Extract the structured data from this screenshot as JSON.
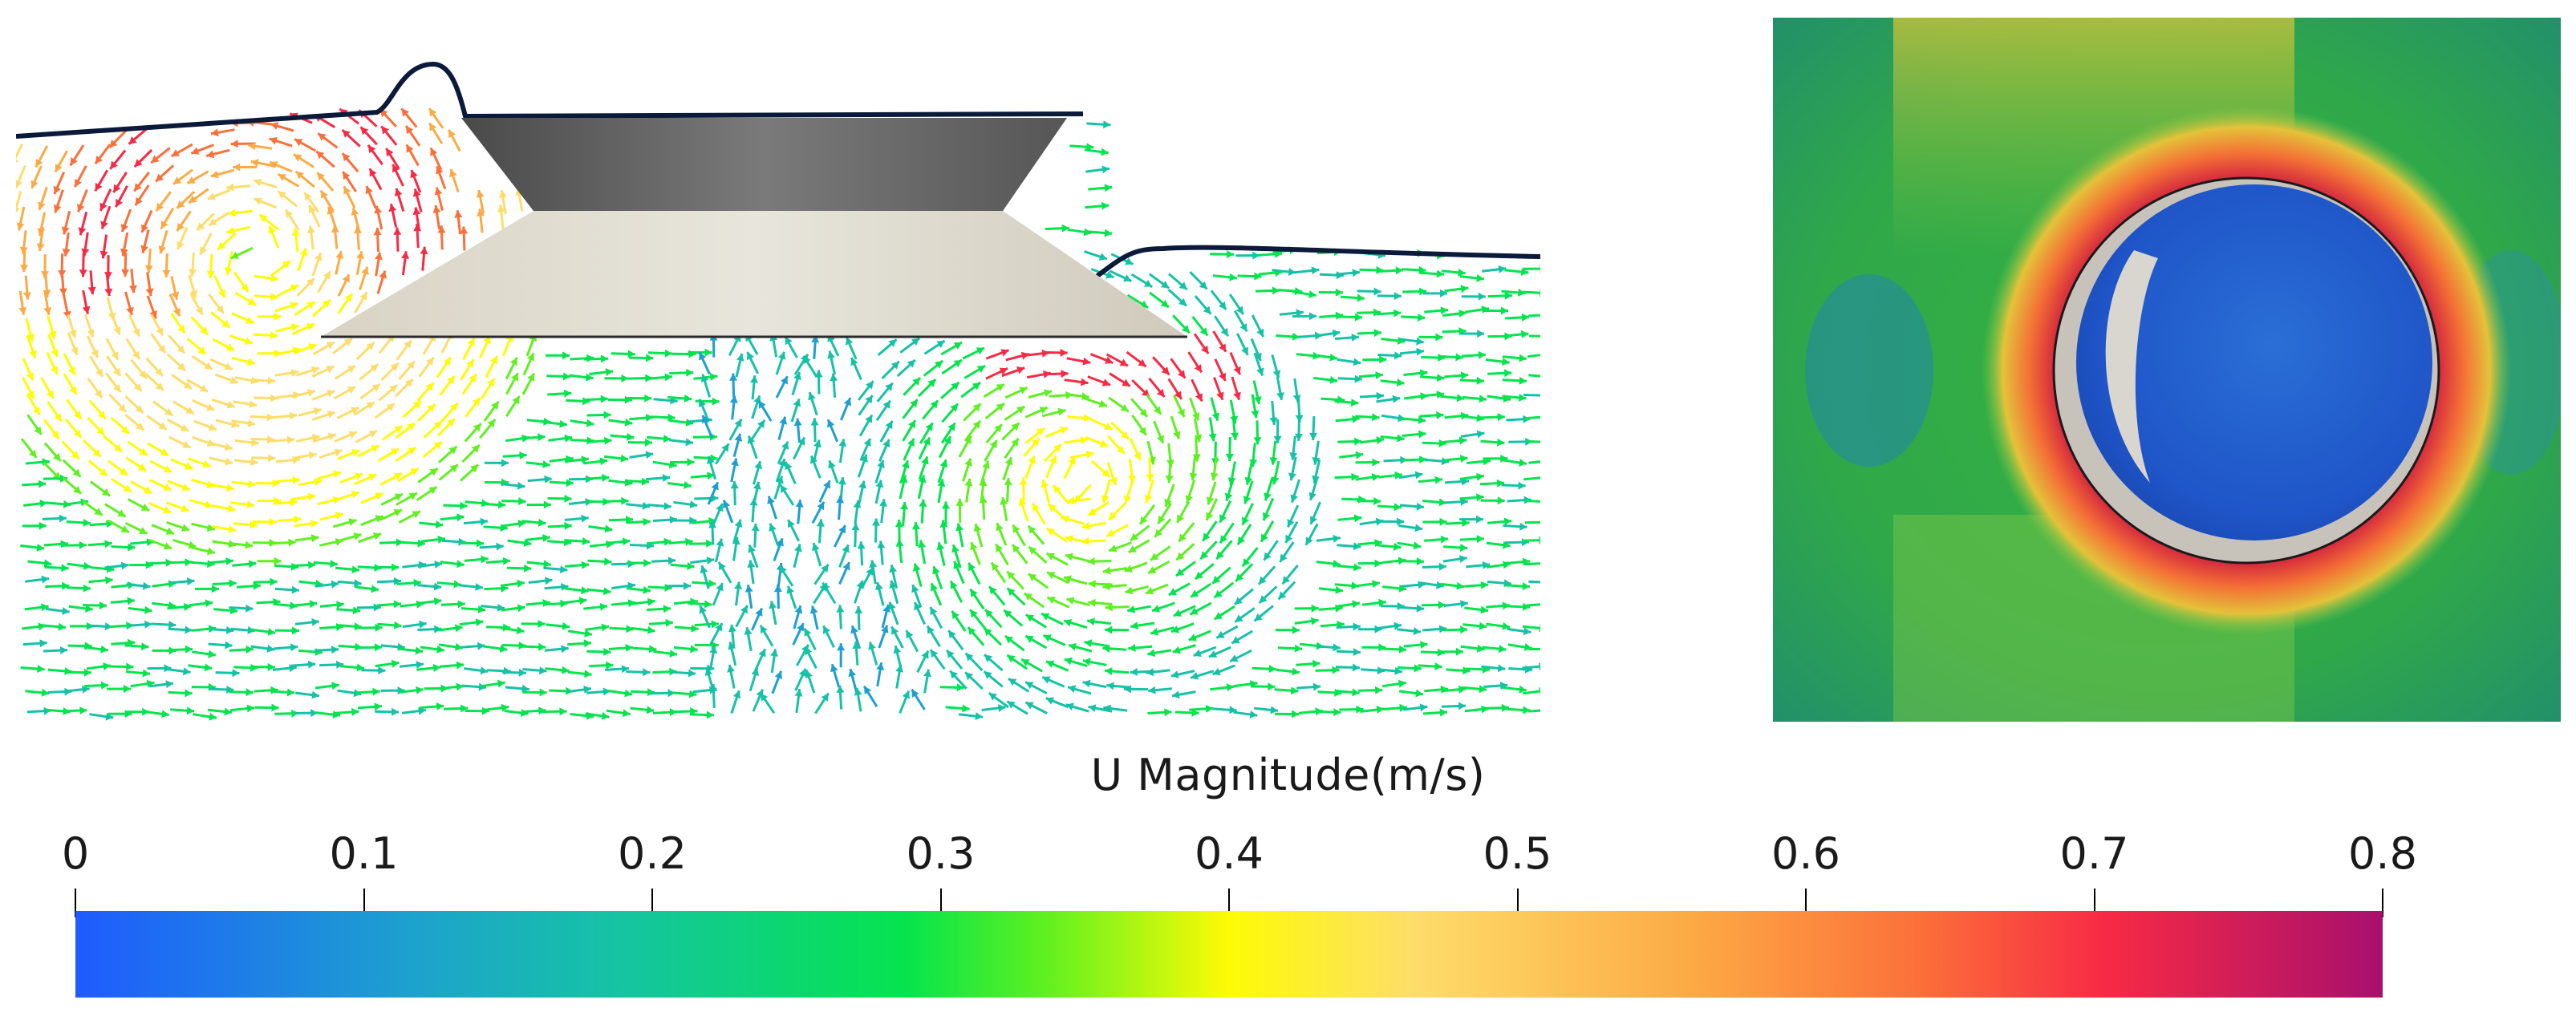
{
  "legend": {
    "title": "U Magnitude(m/s)",
    "ticks": [
      {
        "label": "0",
        "value": 0
      },
      {
        "label": "0.1",
        "value": 0.1
      },
      {
        "label": "0.2",
        "value": 0.2
      },
      {
        "label": "0.3",
        "value": 0.3
      },
      {
        "label": "0.4",
        "value": 0.4
      },
      {
        "label": "0.5",
        "value": 0.5
      },
      {
        "label": "0.6",
        "value": 0.6
      },
      {
        "label": "0.7",
        "value": 0.7
      },
      {
        "label": "0.8",
        "value": 0.8
      }
    ],
    "range": [
      0,
      0.8
    ],
    "colormap": [
      "#1f5bff",
      "#1d9fd0",
      "#16c2a6",
      "#05e44d",
      "#5ff020",
      "#fdfb05",
      "#fddd6a",
      "#fcaa44",
      "#fb6f39",
      "#f72a45",
      "#a8106d"
    ]
  },
  "side_view": {
    "kind": "velocity-vector-field",
    "object": "truncated-cone-body",
    "free_surface_color": "#0b1a3a"
  },
  "top_view": {
    "kind": "velocity-magnitude-contour",
    "object": "circular-body"
  }
}
